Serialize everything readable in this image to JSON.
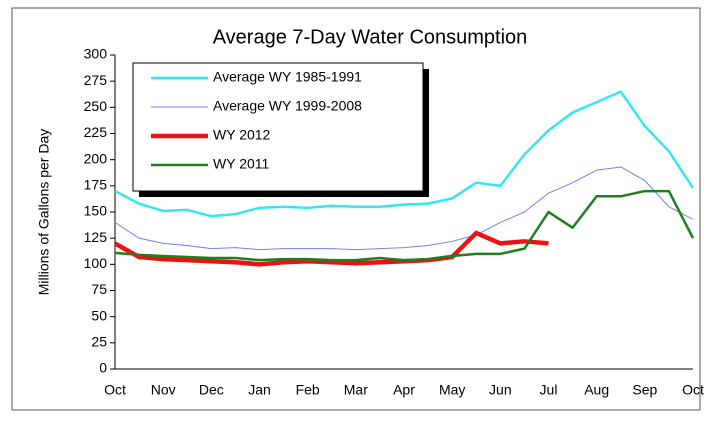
{
  "chart_data": {
    "type": "line",
    "title": "Average 7-Day Water Consumption",
    "y_label": "Millions of Gallons per Day",
    "categories": [
      "Oct",
      null,
      "Nov",
      null,
      "Dec",
      null,
      "Jan",
      null,
      "Feb",
      null,
      "Mar",
      null,
      "Apr",
      null,
      "May",
      null,
      "Jun",
      null,
      "Jul",
      null,
      "Aug",
      null,
      "Sep",
      null,
      "Oct"
    ],
    "series": [
      {
        "name": "Average WY 1985-1991",
        "color": "#33e6f0",
        "width": 2.5,
        "values": [
          170,
          158,
          151,
          152,
          146,
          148,
          154,
          155,
          154,
          156,
          155,
          155,
          157,
          158,
          163,
          178,
          175,
          205,
          228,
          245,
          255,
          265,
          232,
          208,
          173
        ]
      },
      {
        "name": "Average WY 1999-2008",
        "color": "#7080ee",
        "width": 1,
        "values": [
          140,
          125,
          120,
          118,
          115,
          116,
          114,
          115,
          115,
          115,
          114,
          115,
          116,
          118,
          122,
          128,
          140,
          150,
          168,
          178,
          190,
          193,
          180,
          155,
          143
        ]
      },
      {
        "name": "WY 2012",
        "color": "#ee1111",
        "width": 4.5,
        "values": [
          120,
          107,
          105,
          104,
          103,
          102,
          100,
          102,
          103,
          102,
          101,
          102,
          103,
          104,
          107,
          130,
          120,
          122,
          120,
          null,
          null,
          null,
          null,
          null,
          null
        ]
      },
      {
        "name": "WY 2011",
        "color": "#1f7f1f",
        "width": 2.5,
        "values": [
          111,
          109,
          108,
          107,
          106,
          106,
          104,
          105,
          105,
          104,
          104,
          106,
          104,
          105,
          108,
          110,
          110,
          115,
          150,
          135,
          165,
          165,
          170,
          170,
          125
        ]
      }
    ],
    "ylim": [
      0,
      300
    ],
    "yticks": [
      0,
      25,
      50,
      75,
      100,
      125,
      150,
      175,
      200,
      225,
      250,
      275,
      300
    ],
    "legend": "upper left"
  }
}
